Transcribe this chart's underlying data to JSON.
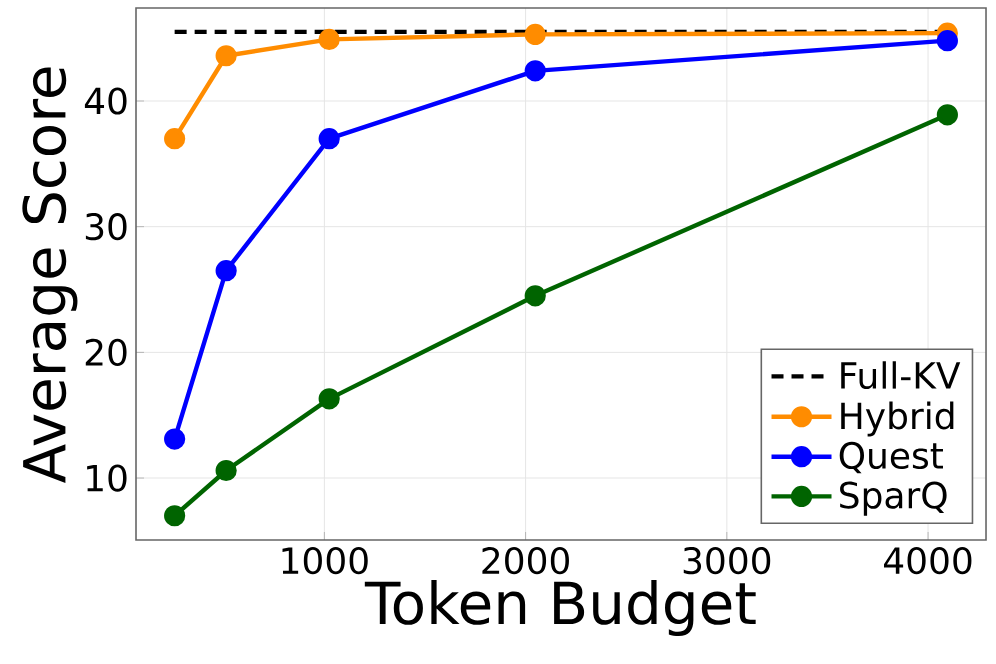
{
  "chart_data": {
    "type": "line",
    "xlabel": "Token Budget",
    "ylabel": "Average Score",
    "xlim": [
      64,
      4288
    ],
    "ylim": [
      5.07,
      47.4
    ],
    "xticks": [
      1000,
      2000,
      3000,
      4000
    ],
    "yticks": [
      10,
      20,
      30,
      40
    ],
    "grid": true,
    "legend": "bottom right",
    "marker": "circle",
    "line_style": "solid",
    "series": [
      {
        "name": "Full-KV",
        "color": "#000000",
        "x": [
          256,
          4096
        ],
        "values": [
          45.5,
          45.5
        ],
        "marker": "none",
        "line_style": "dashed"
      },
      {
        "name": "Hybrid",
        "color": "#ff8c00",
        "x": [
          256,
          512,
          1024,
          2048,
          4096
        ],
        "values": [
          37.0,
          43.6,
          44.9,
          45.3,
          45.4
        ]
      },
      {
        "name": "Quest",
        "color": "#0000ff",
        "x": [
          256,
          512,
          1024,
          2048,
          4096
        ],
        "values": [
          13.1,
          26.5,
          37.0,
          42.4,
          44.8
        ]
      },
      {
        "name": "SparQ",
        "color": "#006400",
        "x": [
          256,
          512,
          1024,
          2048,
          4096
        ],
        "values": [
          7.0,
          10.6,
          16.3,
          24.5,
          38.9
        ]
      }
    ]
  }
}
